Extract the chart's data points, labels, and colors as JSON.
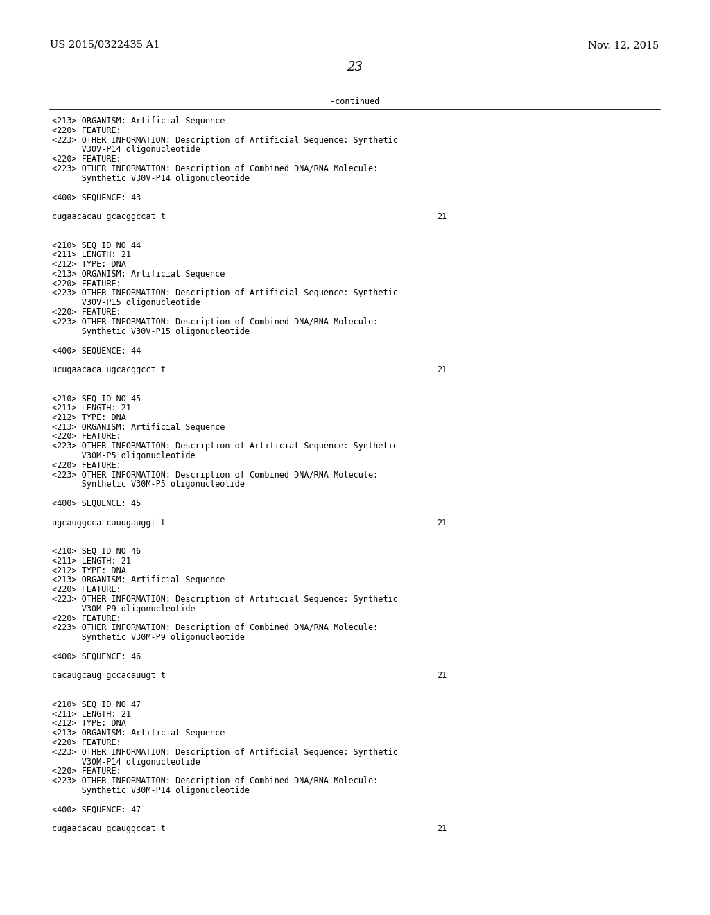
{
  "bg_color": "#ffffff",
  "header_left": "US 2015/0322435 A1",
  "header_right": "Nov. 12, 2015",
  "page_number": "23",
  "continued_label": "-continued",
  "font_size_header": 10.5,
  "font_size_page": 13,
  "font_size_body": 8.5,
  "body_lines": [
    {
      "text": "<213> ORGANISM: Artificial Sequence",
      "seq": false
    },
    {
      "text": "<220> FEATURE:",
      "seq": false
    },
    {
      "text": "<223> OTHER INFORMATION: Description of Artificial Sequence: Synthetic",
      "seq": false
    },
    {
      "text": "      V30V-P14 oligonucleotide",
      "seq": false
    },
    {
      "text": "<220> FEATURE:",
      "seq": false
    },
    {
      "text": "<223> OTHER INFORMATION: Description of Combined DNA/RNA Molecule:",
      "seq": false
    },
    {
      "text": "      Synthetic V30V-P14 oligonucleotide",
      "seq": false
    },
    {
      "text": "",
      "seq": false
    },
    {
      "text": "<400> SEQUENCE: 43",
      "seq": false
    },
    {
      "text": "",
      "seq": false
    },
    {
      "text": "cugaacacau gcacggccat t",
      "seq": true,
      "num": "21"
    },
    {
      "text": "",
      "seq": false
    },
    {
      "text": "",
      "seq": false
    },
    {
      "text": "<210> SEQ ID NO 44",
      "seq": false
    },
    {
      "text": "<211> LENGTH: 21",
      "seq": false
    },
    {
      "text": "<212> TYPE: DNA",
      "seq": false
    },
    {
      "text": "<213> ORGANISM: Artificial Sequence",
      "seq": false
    },
    {
      "text": "<220> FEATURE:",
      "seq": false
    },
    {
      "text": "<223> OTHER INFORMATION: Description of Artificial Sequence: Synthetic",
      "seq": false
    },
    {
      "text": "      V30V-P15 oligonucleotide",
      "seq": false
    },
    {
      "text": "<220> FEATURE:",
      "seq": false
    },
    {
      "text": "<223> OTHER INFORMATION: Description of Combined DNA/RNA Molecule:",
      "seq": false
    },
    {
      "text": "      Synthetic V30V-P15 oligonucleotide",
      "seq": false
    },
    {
      "text": "",
      "seq": false
    },
    {
      "text": "<400> SEQUENCE: 44",
      "seq": false
    },
    {
      "text": "",
      "seq": false
    },
    {
      "text": "ucugaacaca ugcacggcct t",
      "seq": true,
      "num": "21"
    },
    {
      "text": "",
      "seq": false
    },
    {
      "text": "",
      "seq": false
    },
    {
      "text": "<210> SEQ ID NO 45",
      "seq": false
    },
    {
      "text": "<211> LENGTH: 21",
      "seq": false
    },
    {
      "text": "<212> TYPE: DNA",
      "seq": false
    },
    {
      "text": "<213> ORGANISM: Artificial Sequence",
      "seq": false
    },
    {
      "text": "<220> FEATURE:",
      "seq": false
    },
    {
      "text": "<223> OTHER INFORMATION: Description of Artificial Sequence: Synthetic",
      "seq": false
    },
    {
      "text": "      V30M-P5 oligonucleotide",
      "seq": false
    },
    {
      "text": "<220> FEATURE:",
      "seq": false
    },
    {
      "text": "<223> OTHER INFORMATION: Description of Combined DNA/RNA Molecule:",
      "seq": false
    },
    {
      "text": "      Synthetic V30M-P5 oligonucleotide",
      "seq": false
    },
    {
      "text": "",
      "seq": false
    },
    {
      "text": "<400> SEQUENCE: 45",
      "seq": false
    },
    {
      "text": "",
      "seq": false
    },
    {
      "text": "ugcauggcca cauugauggt t",
      "seq": true,
      "num": "21"
    },
    {
      "text": "",
      "seq": false
    },
    {
      "text": "",
      "seq": false
    },
    {
      "text": "<210> SEQ ID NO 46",
      "seq": false
    },
    {
      "text": "<211> LENGTH: 21",
      "seq": false
    },
    {
      "text": "<212> TYPE: DNA",
      "seq": false
    },
    {
      "text": "<213> ORGANISM: Artificial Sequence",
      "seq": false
    },
    {
      "text": "<220> FEATURE:",
      "seq": false
    },
    {
      "text": "<223> OTHER INFORMATION: Description of Artificial Sequence: Synthetic",
      "seq": false
    },
    {
      "text": "      V30M-P9 oligonucleotide",
      "seq": false
    },
    {
      "text": "<220> FEATURE:",
      "seq": false
    },
    {
      "text": "<223> OTHER INFORMATION: Description of Combined DNA/RNA Molecule:",
      "seq": false
    },
    {
      "text": "      Synthetic V30M-P9 oligonucleotide",
      "seq": false
    },
    {
      "text": "",
      "seq": false
    },
    {
      "text": "<400> SEQUENCE: 46",
      "seq": false
    },
    {
      "text": "",
      "seq": false
    },
    {
      "text": "cacaugcaug gccacauugt t",
      "seq": true,
      "num": "21"
    },
    {
      "text": "",
      "seq": false
    },
    {
      "text": "",
      "seq": false
    },
    {
      "text": "<210> SEQ ID NO 47",
      "seq": false
    },
    {
      "text": "<211> LENGTH: 21",
      "seq": false
    },
    {
      "text": "<212> TYPE: DNA",
      "seq": false
    },
    {
      "text": "<213> ORGANISM: Artificial Sequence",
      "seq": false
    },
    {
      "text": "<220> FEATURE:",
      "seq": false
    },
    {
      "text": "<223> OTHER INFORMATION: Description of Artificial Sequence: Synthetic",
      "seq": false
    },
    {
      "text": "      V30M-P14 oligonucleotide",
      "seq": false
    },
    {
      "text": "<220> FEATURE:",
      "seq": false
    },
    {
      "text": "<223> OTHER INFORMATION: Description of Combined DNA/RNA Molecule:",
      "seq": false
    },
    {
      "text": "      Synthetic V30M-P14 oligonucleotide",
      "seq": false
    },
    {
      "text": "",
      "seq": false
    },
    {
      "text": "<400> SEQUENCE: 47",
      "seq": false
    },
    {
      "text": "",
      "seq": false
    },
    {
      "text": "cugaacacau gcauggccat t",
      "seq": true,
      "num": "21"
    }
  ]
}
